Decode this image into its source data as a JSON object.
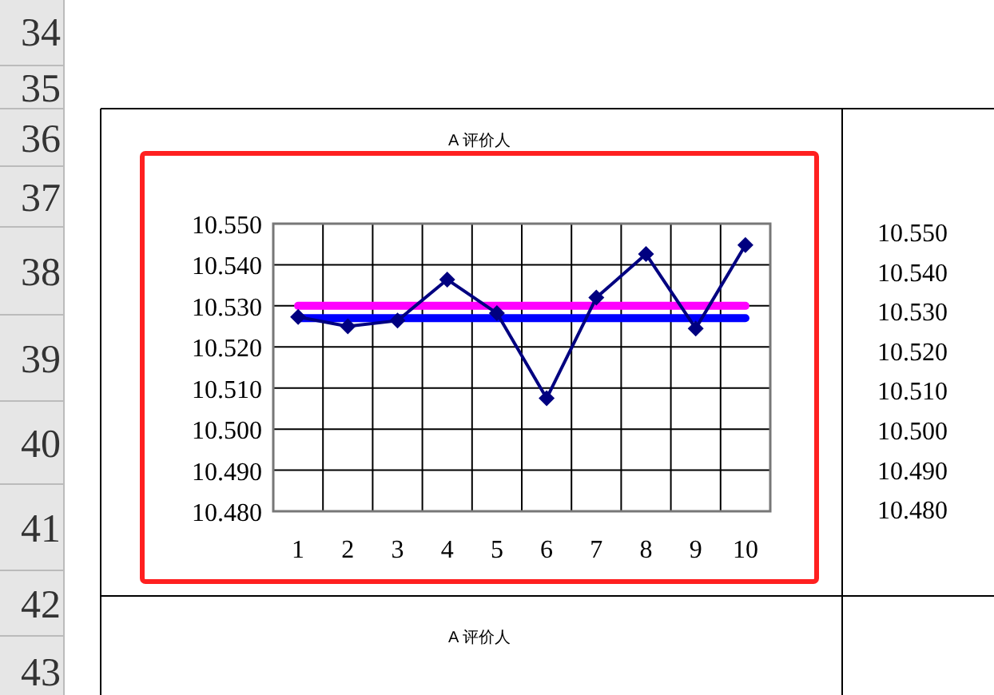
{
  "chart_data": {
    "type": "line",
    "title": "A 评价人",
    "categories": [
      "1",
      "2",
      "3",
      "4",
      "5",
      "6",
      "7",
      "8",
      "9",
      "10"
    ],
    "series": [
      {
        "color": "#000080",
        "values": [
          10.5273,
          10.525,
          10.5264,
          10.5364,
          10.5282,
          10.5075,
          10.532,
          10.5426,
          10.5245,
          10.5448
        ],
        "marker": "diamond"
      },
      {
        "color": "#ff00ff",
        "values": [
          10.53,
          10.53,
          10.53,
          10.53,
          10.53,
          10.53,
          10.53,
          10.53,
          10.53,
          10.53
        ],
        "marker": "none"
      },
      {
        "color": "#0000ff",
        "values": [
          10.527,
          10.527,
          10.527,
          10.527,
          10.527,
          10.527,
          10.527,
          10.527,
          10.527,
          10.527
        ],
        "marker": "none"
      }
    ],
    "ylim": [
      10.48,
      10.55
    ],
    "yticks": [
      {
        "value": 10.55,
        "label": "10.550"
      },
      {
        "value": 10.54,
        "label": "10.540"
      },
      {
        "value": 10.53,
        "label": "10.530"
      },
      {
        "value": 10.52,
        "label": "10.520"
      },
      {
        "value": 10.51,
        "label": "10.510"
      },
      {
        "value": 10.5,
        "label": "10.500"
      },
      {
        "value": 10.49,
        "label": "10.490"
      },
      {
        "value": 10.48,
        "label": "10.480"
      }
    ],
    "grid": true,
    "annotations": [
      "34",
      "35",
      "36",
      "37",
      "38",
      "39",
      "40",
      "41",
      "42",
      "43",
      "10.550",
      "10.540",
      "10.530",
      "10.520",
      "10.510",
      "10.500",
      "10.490",
      "10.480",
      "A 评价人"
    ]
  }
}
